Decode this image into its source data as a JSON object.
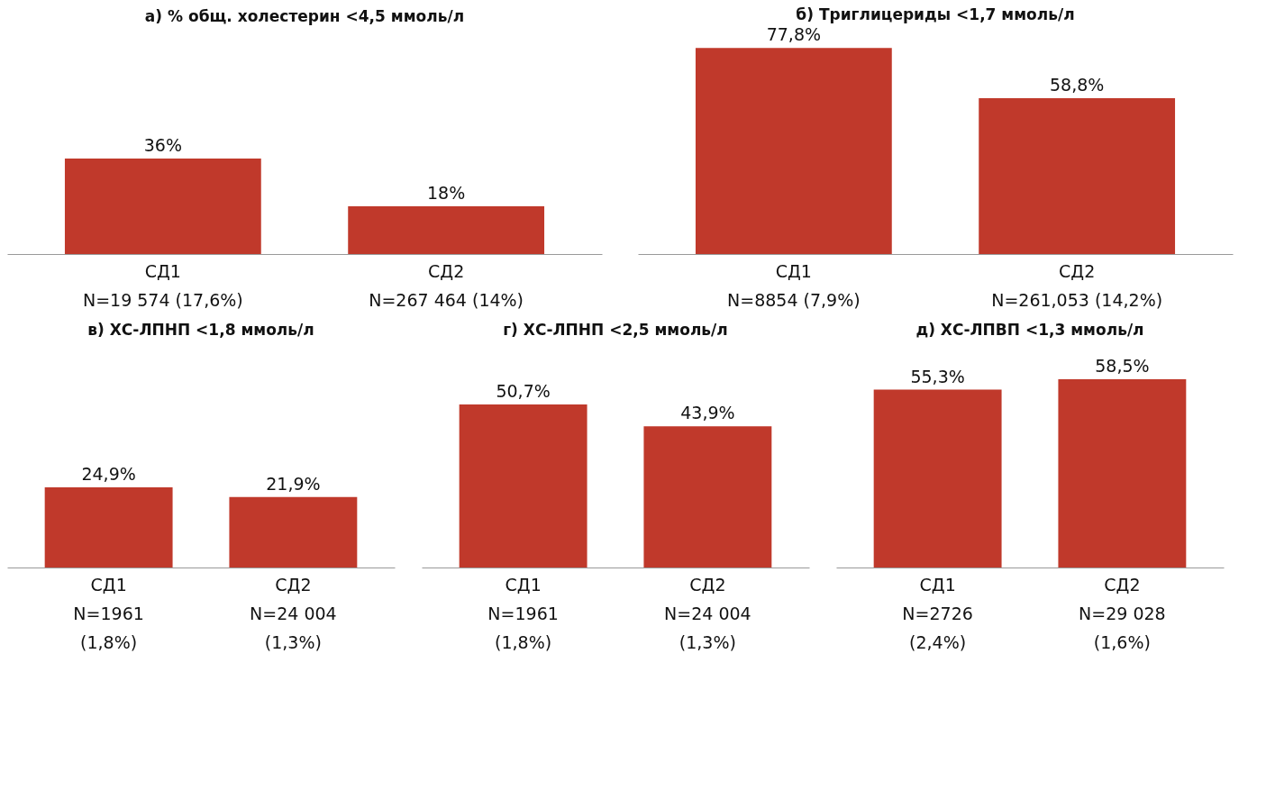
{
  "chart_data": [
    {
      "type": "bar",
      "title": "а) % общ. холестерин <4,5 ммоль/л",
      "categories": [
        "СД1\nN=19 574 (17,6%)",
        "СД2\nN=267 464 (14%)"
      ],
      "values": [
        36,
        18
      ],
      "value_labels": [
        "36%",
        "18%"
      ],
      "color": "#c0392b"
    },
    {
      "type": "bar",
      "title": "б) Триглицериды <1,7 ммоль/л",
      "categories": [
        "СД1\nN=8854 (7,9%)",
        "СД2\nN=261,053 (14,2%)"
      ],
      "values": [
        77.8,
        58.8
      ],
      "value_labels": [
        "77,8%",
        "58,8%"
      ],
      "color": "#c0392b"
    },
    {
      "type": "bar",
      "title": "в) ХС-ЛПНП <1,8 ммоль/л",
      "categories": [
        "СД1\nN=1961\n(1,8%)",
        "СД2\nN=24 004\n(1,3%)"
      ],
      "values": [
        24.9,
        21.9
      ],
      "value_labels": [
        "24,9%",
        "21,9%"
      ],
      "color": "#c0392b"
    },
    {
      "type": "bar",
      "title": "г) ХС-ЛПНП <2,5 ммоль/л",
      "categories": [
        "СД1\nN=1961\n(1,8%)",
        "СД2\nN=24 004\n(1,3%)"
      ],
      "values": [
        50.7,
        43.9
      ],
      "value_labels": [
        "50,7%",
        "43,9%"
      ],
      "color": "#c0392b"
    },
    {
      "type": "bar",
      "title": "д) ХС-ЛПВП <1,3 ммоль/л",
      "categories": [
        "СД1\nN=2726\n(2,4%)",
        "СД2\nN=29 028\n(1,6%)"
      ],
      "values": [
        55.3,
        58.5
      ],
      "value_labels": [
        "55,3%",
        "58,5%"
      ],
      "color": "#c0392b"
    }
  ]
}
